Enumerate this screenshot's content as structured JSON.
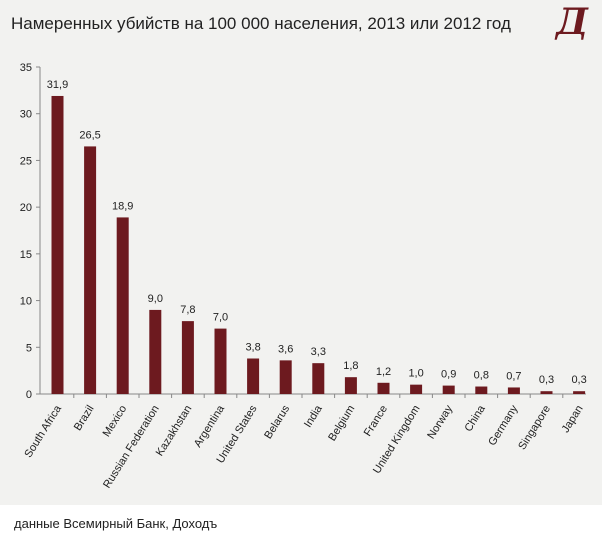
{
  "title": "Намеренных убийств на 100 000 населения, 2013 или 2012 год",
  "logo": "Д",
  "footer": "данные Всемирный Банк, Доходъ",
  "bar_color": "#6d1a1f",
  "chart_data": {
    "type": "bar",
    "title": "Намеренных убийств на 100 000 населения, 2013 или 2012 год",
    "xlabel": "",
    "ylabel": "",
    "ylim": [
      0,
      35
    ],
    "yticks": [
      0,
      5,
      10,
      15,
      20,
      25,
      30,
      35
    ],
    "grid": false,
    "categories": [
      "South Africa",
      "Brazil",
      "Mexico",
      "Russian Federation",
      "Kazakhstan",
      "Argentina",
      "United States",
      "Belarus",
      "India",
      "Belgium",
      "France",
      "United Kingdom",
      "Norway",
      "China",
      "Germany",
      "Singapore",
      "Japan"
    ],
    "values": [
      31.9,
      26.5,
      18.9,
      9.0,
      7.8,
      7.0,
      3.8,
      3.6,
      3.3,
      1.8,
      1.2,
      1.0,
      0.9,
      0.8,
      0.7,
      0.3,
      0.3
    ],
    "value_labels": [
      "31,9",
      "26,5",
      "18,9",
      "9,0",
      "7,8",
      "7,0",
      "3,8",
      "3,6",
      "3,3",
      "1,8",
      "1,2",
      "1,0",
      "0,9",
      "0,8",
      "0,7",
      "0,3",
      "0,3"
    ]
  }
}
